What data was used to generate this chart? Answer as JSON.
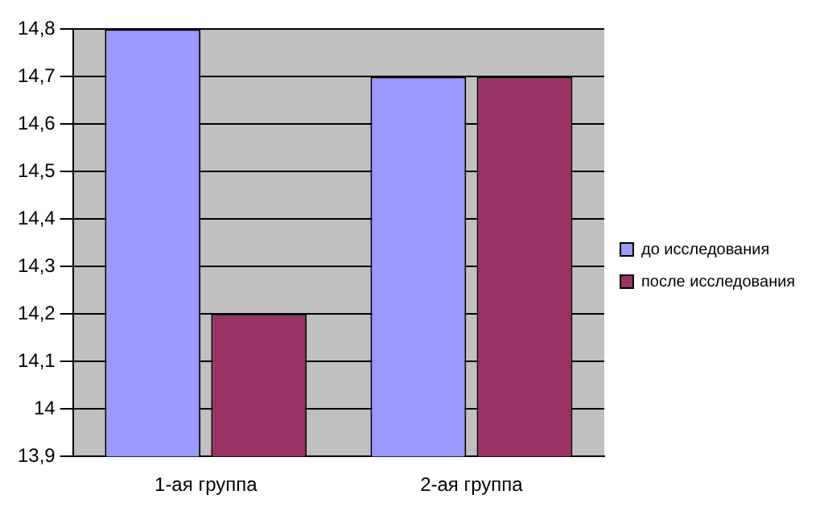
{
  "chart_data": {
    "type": "bar",
    "categories": [
      "1-ая группа",
      "2-ая группа"
    ],
    "series": [
      {
        "name": "до исследования",
        "color": "#9999ff",
        "values": [
          14.8,
          14.7
        ]
      },
      {
        "name": "после исследования",
        "color": "#993366",
        "values": [
          14.2,
          14.7
        ]
      }
    ],
    "ylim": [
      13.9,
      14.8
    ],
    "yticks": [
      {
        "value": 13.9,
        "label": "13,9"
      },
      14,
      {
        "value": 14.1,
        "label": "14,1"
      },
      {
        "value": 14.2,
        "label": "14,2"
      },
      {
        "value": 14.3,
        "label": "14,3"
      },
      {
        "value": 14.4,
        "label": "14,4"
      },
      {
        "value": 14.5,
        "label": "14,5"
      },
      {
        "value": 14.6,
        "label": "14,6"
      },
      {
        "value": 14.7,
        "label": "14,7"
      },
      {
        "value": 14.8,
        "label": "14,8"
      }
    ],
    "grid": "y",
    "legend": "right"
  }
}
